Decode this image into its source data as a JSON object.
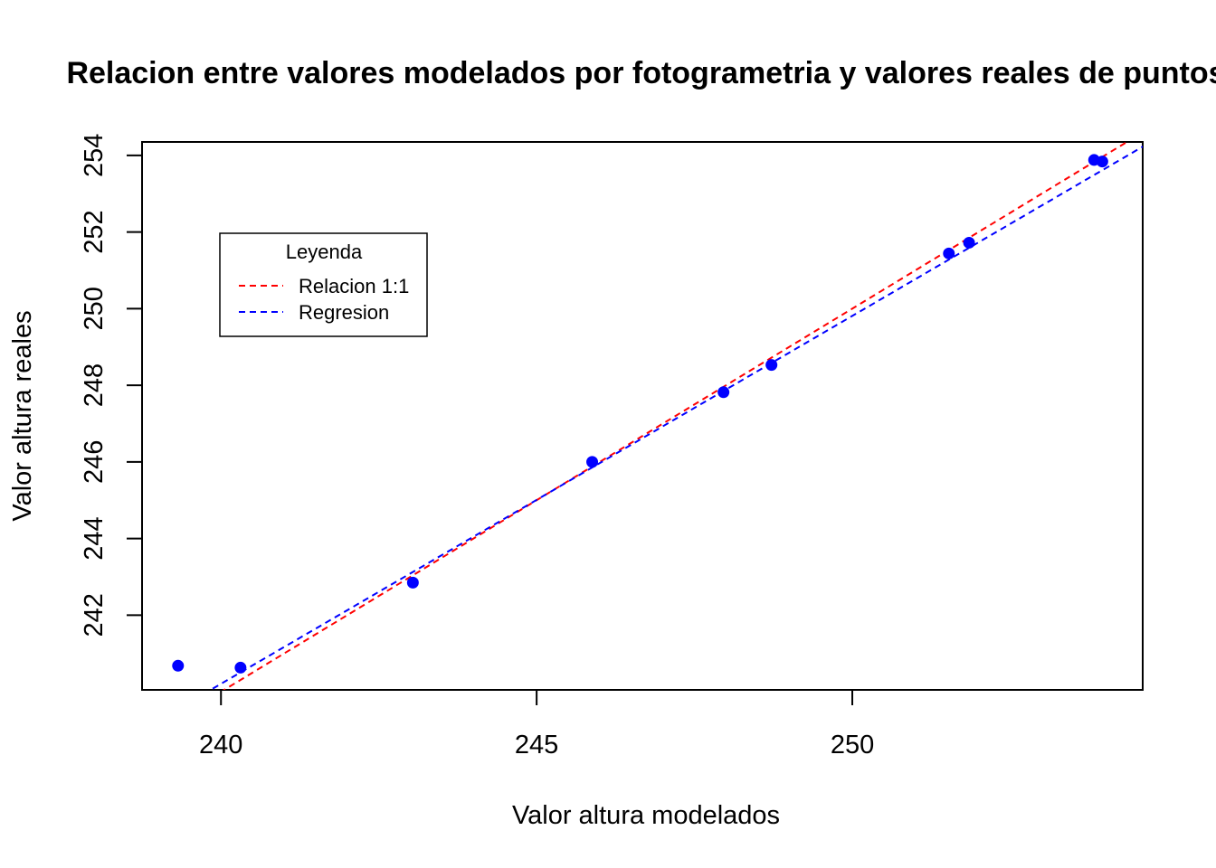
{
  "chart_data": {
    "type": "scatter",
    "title": "Relacion entre valores modelados por fotogrametria y valores reales de puntos",
    "xlabel": "Valor altura modelados",
    "ylabel": "Valor altura reales",
    "xlim": [
      238.75,
      254.6
    ],
    "ylim": [
      240.05,
      254.35
    ],
    "x_ticks": [
      240,
      245,
      250
    ],
    "y_ticks": [
      242,
      244,
      246,
      248,
      250,
      252,
      254
    ],
    "points": {
      "color": "#0000ff",
      "x": [
        239.32,
        240.31,
        243.04,
        245.88,
        247.96,
        248.72,
        251.53,
        251.85,
        253.83,
        253.96
      ],
      "y": [
        240.68,
        240.63,
        242.85,
        246.0,
        247.82,
        248.53,
        251.44,
        251.72,
        253.88,
        253.84
      ]
    },
    "lines": [
      {
        "name": "Relacion 1:1",
        "color": "#ff0000",
        "dash": "dashed",
        "intercept": 0,
        "slope": 1
      },
      {
        "name": "Regresion",
        "color": "#0000ff",
        "dash": "dashed",
        "intercept": 9.76,
        "slope": 0.9602
      }
    ],
    "legend": {
      "title": "Leyenda",
      "position": "top-left",
      "entries": [
        {
          "label": "Relacion 1:1",
          "color": "#ff0000"
        },
        {
          "label": "Regresion",
          "color": "#0000ff"
        }
      ]
    },
    "grid": false
  }
}
